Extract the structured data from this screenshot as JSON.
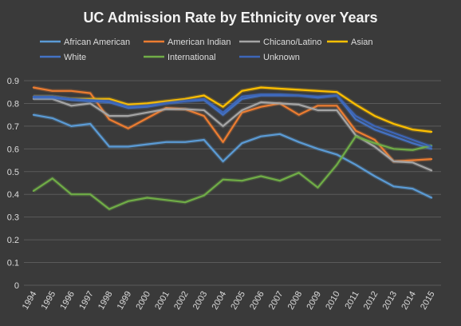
{
  "chart_data": {
    "type": "line",
    "title": "UC Admission Rate by Ethnicity over Years",
    "xlabel": "",
    "ylabel": "",
    "ylim": [
      0,
      0.9
    ],
    "yticks": [
      "0",
      "0.1",
      "0.2",
      "0.3",
      "0.4",
      "0.5",
      "0.6",
      "0.7",
      "0.8",
      "0.9"
    ],
    "grid": true,
    "legend_position": "top",
    "x": [
      "1994",
      "1995",
      "1996",
      "1997",
      "1998",
      "1999",
      "2000",
      "2001",
      "2002",
      "2003",
      "2004",
      "2005",
      "2006",
      "2007",
      "2008",
      "2009",
      "2010",
      "2011",
      "2012",
      "2013",
      "2014",
      "2015"
    ],
    "series": [
      {
        "name": "African American",
        "color": "#5b9bd5",
        "values": [
          0.75,
          0.735,
          0.7,
          0.71,
          0.61,
          0.61,
          0.62,
          0.63,
          0.63,
          0.64,
          0.545,
          0.625,
          0.655,
          0.665,
          0.63,
          0.6,
          0.575,
          0.53,
          0.48,
          0.435,
          0.425,
          0.385
        ]
      },
      {
        "name": "American Indian",
        "color": "#ed7d31",
        "values": [
          0.87,
          0.855,
          0.855,
          0.845,
          0.73,
          0.69,
          0.735,
          0.78,
          0.775,
          0.745,
          0.63,
          0.76,
          0.785,
          0.8,
          0.75,
          0.79,
          0.79,
          0.68,
          0.64,
          0.545,
          0.55,
          0.555
        ]
      },
      {
        "name": "Chicano/Latino",
        "color": "#a5a5a5",
        "values": [
          0.82,
          0.82,
          0.79,
          0.8,
          0.745,
          0.745,
          0.76,
          0.775,
          0.775,
          0.77,
          0.7,
          0.77,
          0.805,
          0.8,
          0.795,
          0.77,
          0.77,
          0.66,
          0.61,
          0.545,
          0.54,
          0.505
        ]
      },
      {
        "name": "Asian",
        "color": "#ffc000",
        "values": [
          0.83,
          0.83,
          0.82,
          0.82,
          0.82,
          0.795,
          0.8,
          0.81,
          0.82,
          0.835,
          0.785,
          0.855,
          0.87,
          0.865,
          0.86,
          0.855,
          0.85,
          0.795,
          0.745,
          0.71,
          0.685,
          0.675
        ]
      },
      {
        "name": "White",
        "color": "#4472c4",
        "values": [
          0.825,
          0.825,
          0.815,
          0.81,
          0.805,
          0.78,
          0.785,
          0.8,
          0.81,
          0.815,
          0.75,
          0.82,
          0.835,
          0.835,
          0.835,
          0.825,
          0.835,
          0.73,
          0.685,
          0.655,
          0.625,
          0.6
        ]
      },
      {
        "name": "International",
        "color": "#70ad47",
        "values": [
          0.415,
          0.47,
          0.4,
          0.4,
          0.335,
          0.37,
          0.385,
          0.375,
          0.365,
          0.395,
          0.465,
          0.46,
          0.48,
          0.46,
          0.495,
          0.43,
          0.53,
          0.655,
          0.625,
          0.6,
          0.595,
          0.615
        ]
      },
      {
        "name": "Unknown",
        "color": "#3d66b8",
        "values": [
          0.83,
          0.83,
          0.82,
          0.815,
          0.81,
          0.785,
          0.79,
          0.8,
          0.81,
          0.82,
          0.76,
          0.83,
          0.84,
          0.84,
          0.835,
          0.83,
          0.835,
          0.745,
          0.7,
          0.67,
          0.64,
          0.61
        ]
      }
    ]
  }
}
